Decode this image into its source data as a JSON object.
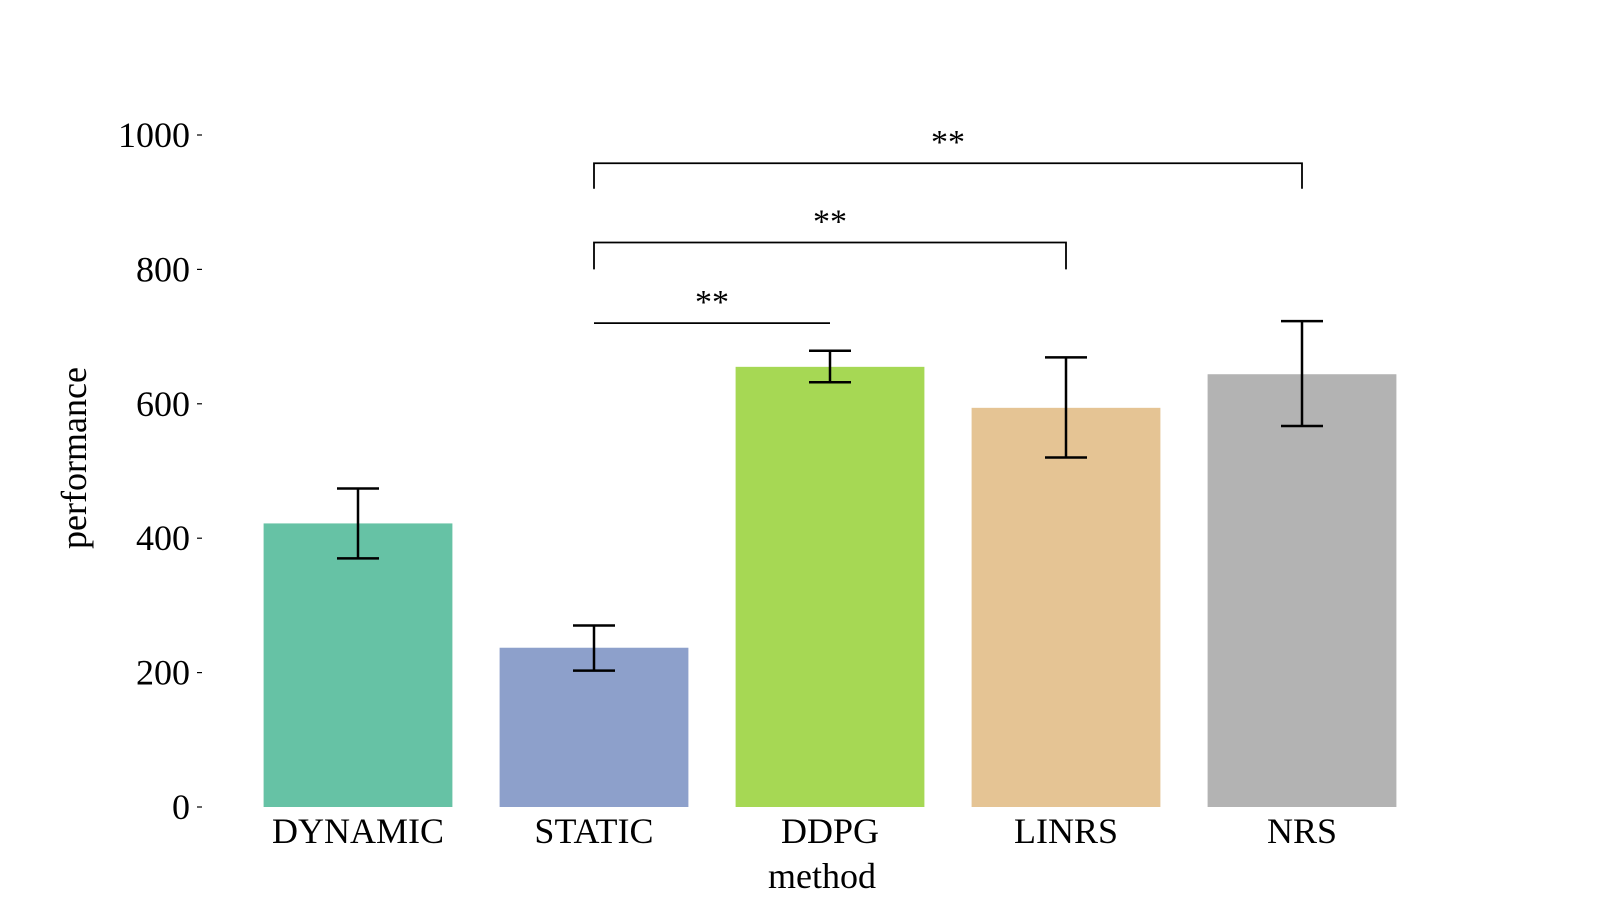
{
  "chart_data": {
    "type": "bar",
    "categories": [
      "DYNAMIC",
      "STATIC",
      "DDPG",
      "LINRS",
      "NRS"
    ],
    "values": [
      422,
      237,
      655,
      594,
      644
    ],
    "error_low": [
      370,
      203,
      632,
      520,
      567
    ],
    "error_high": [
      474,
      270,
      679,
      669,
      723
    ],
    "colors": [
      "#66c2a5",
      "#8da0cb",
      "#a6d854",
      "#e5c494",
      "#b3b3b3"
    ],
    "xlabel": "method",
    "ylabel": "performance",
    "ylim": [
      0,
      1000
    ],
    "yticks": [
      0,
      200,
      400,
      600,
      800,
      1000
    ],
    "grid": false,
    "significance": [
      {
        "from": "STATIC",
        "to": "DDPG",
        "label": "**",
        "level": 720,
        "low": 720
      },
      {
        "from": "STATIC",
        "to": "LINRS",
        "label": "**",
        "level": 840,
        "low": 800
      },
      {
        "from": "STATIC",
        "to": "NRS",
        "label": "**",
        "level": 958,
        "low": 920
      }
    ]
  }
}
